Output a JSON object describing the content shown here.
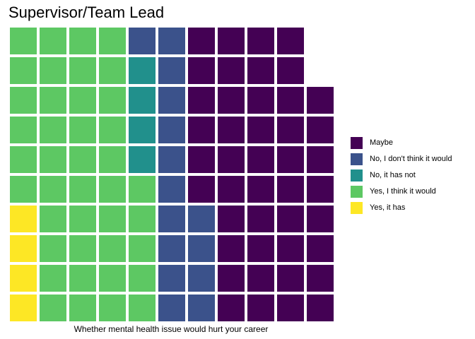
{
  "chart_data": {
    "type": "waffle",
    "title": "Supervisor/Team Lead",
    "xlabel": "Whether mental health issue would hurt your career",
    "ylabel": "",
    "units_per_square": 1,
    "rows": 10,
    "grid": false,
    "legend_position": "right",
    "categories": [
      "Yes, it has",
      "Yes, I think it would",
      "No, it has not",
      "No, I don't think it would",
      "Maybe"
    ],
    "values": [
      4,
      41,
      4,
      15,
      44
    ],
    "colors": {
      "Yes, it has": "#FDE725",
      "Yes, I think it would": "#5DC863",
      "No, it has not": "#21908C",
      "No, I don't think it would": "#3B528B",
      "Maybe": "#440154"
    },
    "legend_order": [
      "Maybe",
      "No, I don't think it would",
      "No, it has not",
      "Yes, I think it would",
      "Yes, it has"
    ]
  }
}
